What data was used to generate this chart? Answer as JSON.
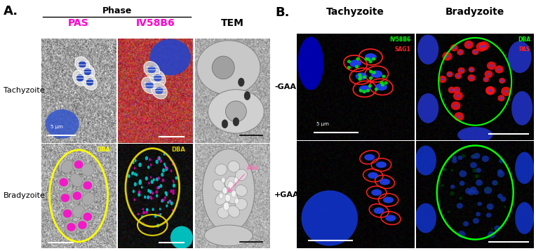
{
  "fig_width": 7.64,
  "fig_height": 3.58,
  "panel_A": {
    "label": "A.",
    "phase_label": "Phase",
    "col_headers": [
      "PAS",
      "IV58B6",
      "TEM"
    ],
    "col_header_colors": [
      "#ff00cc",
      "#ff00cc",
      "#000000"
    ],
    "row_labels": [
      "Tachyzoite",
      "Bradyzoite"
    ],
    "scale_bar_label": "5 μm",
    "dba_label": "DBA",
    "dba_color": "#ffff00",
    "ags_label": "AGs",
    "ags_color": "#ff69b4"
  },
  "panel_B": {
    "label": "B.",
    "col_headers": [
      "Tachyzoite",
      "Bradyzoite"
    ],
    "row_labels": [
      "-GAA",
      "+GAA"
    ],
    "iv58b6_color": "#00ff00",
    "sag1_color": "#ff2222",
    "dba_color": "#00ff00",
    "pas_color": "#ff2222",
    "scale_bar_label": "5 μm"
  },
  "font_size_panel_label": 13,
  "font_size_header": 9,
  "font_size_row_label": 8,
  "font_size_annotation": 5.5,
  "font_size_scale": 5
}
